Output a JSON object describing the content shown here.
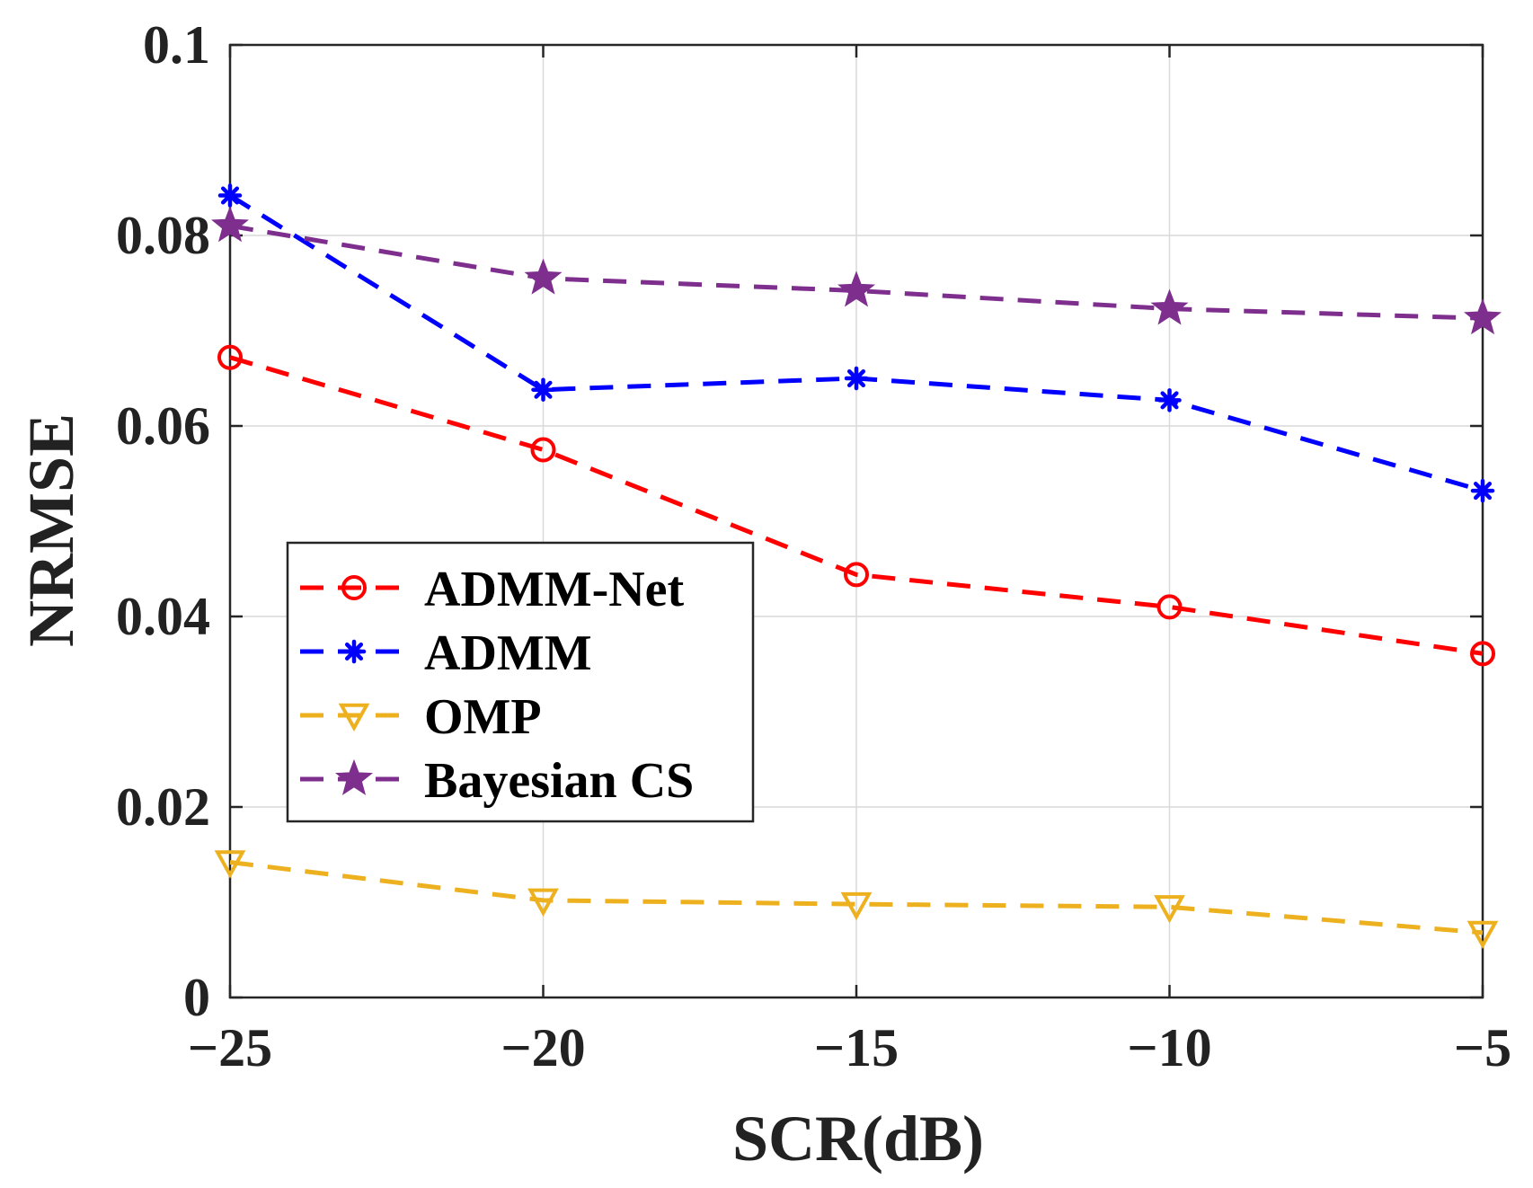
{
  "chart_data": {
    "type": "line",
    "title": "",
    "xlabel": "SCR(dB)",
    "ylabel": "NRMSE",
    "x": [
      -25,
      -20,
      -15,
      -10,
      -5
    ],
    "xlim": [
      -25,
      -5
    ],
    "ylim": [
      0,
      0.1
    ],
    "xticks": [
      -25,
      -20,
      -15,
      -10,
      -5
    ],
    "xtick_labels": [
      "−25",
      "−20",
      "−15",
      "−10",
      "−5"
    ],
    "yticks": [
      0,
      0.02,
      0.04,
      0.06,
      0.08,
      0.1
    ],
    "ytick_labels": [
      "0",
      "0.02",
      "0.04",
      "0.06",
      "0.08",
      "0.1"
    ],
    "grid": true,
    "legend_position": "center-left",
    "series": [
      {
        "name": "ADMM-Net",
        "color": "#ff0000",
        "marker": "circle",
        "line_style": "dashed",
        "values": [
          0.0672,
          0.0575,
          0.0444,
          0.041,
          0.0361
        ]
      },
      {
        "name": "ADMM",
        "color": "#0000ff",
        "marker": "asterisk",
        "line_style": "dashed",
        "values": [
          0.0842,
          0.0638,
          0.065,
          0.0627,
          0.0532
        ]
      },
      {
        "name": "OMP",
        "color": "#edb120",
        "marker": "triangle-down",
        "line_style": "dashed",
        "values": [
          0.0142,
          0.0102,
          0.0098,
          0.0095,
          0.0068
        ]
      },
      {
        "name": "Bayesian CS",
        "color": "#7e2f8e",
        "marker": "star",
        "line_style": "dashed",
        "values": [
          0.081,
          0.0755,
          0.0742,
          0.0723,
          0.0713
        ]
      }
    ]
  }
}
